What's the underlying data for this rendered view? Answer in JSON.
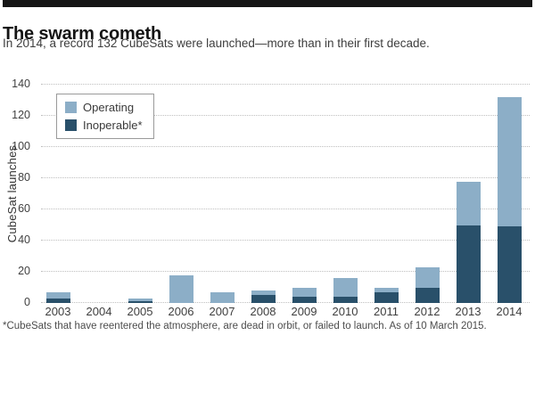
{
  "chart_data": {
    "type": "bar",
    "stacked": true,
    "title": "The swarm cometh",
    "subtitle": "In 2014, a record 132 CubeSats were launched—more than in their first decade.",
    "ylabel": "CubeSat launches",
    "ylim": [
      0,
      140
    ],
    "ytick_step": 20,
    "grid": "horizontal dotted",
    "legend_position": "top-left inside plot",
    "categories": [
      "2003",
      "2004",
      "2005",
      "2006",
      "2007",
      "2008",
      "2009",
      "2010",
      "2011",
      "2012",
      "2013",
      "2014"
    ],
    "series": [
      {
        "name": "Operating",
        "color": "#8caec7",
        "stack_order": "top",
        "values": [
          4,
          0,
          2,
          18,
          7,
          3,
          6,
          12,
          3,
          13,
          28,
          83
        ]
      },
      {
        "name": "Inoperable*",
        "color": "#29506a",
        "stack_order": "bottom",
        "values": [
          3,
          0,
          1,
          0,
          0,
          5,
          4,
          4,
          7,
          10,
          50,
          49
        ]
      }
    ],
    "totals": [
      7,
      0,
      3,
      18,
      7,
      8,
      10,
      16,
      10,
      23,
      78,
      132
    ],
    "footnote": "*CubeSats that have reentered the atmosphere, are dead in orbit, or failed to launch. As of 10 March 2015."
  }
}
